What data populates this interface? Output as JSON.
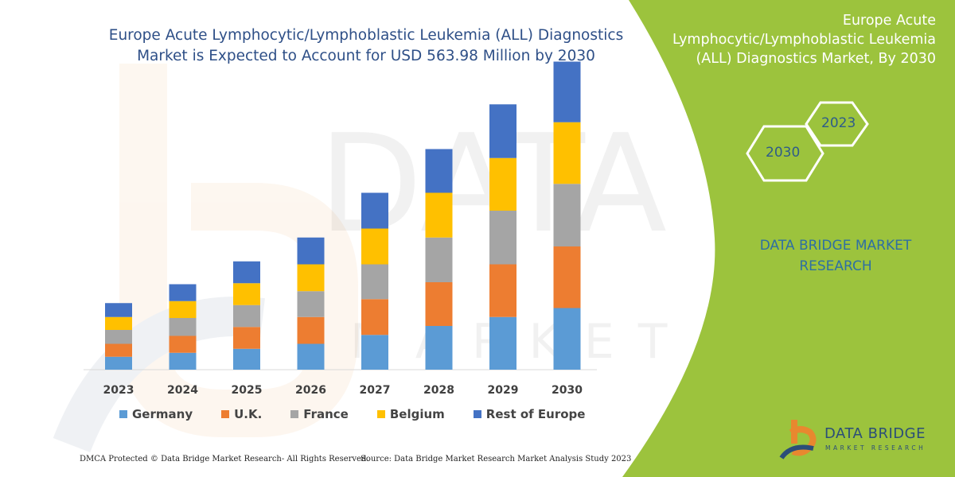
{
  "title": "Europe Acute Lymphocytic/Lymphoblastic Leukemia (ALL) Diagnostics Market is Expected to Account for USD 563.98 Million by 2030",
  "panel": {
    "title": "Europe Acute Lymphocytic/Lymphoblastic Leukemia (ALL) Diagnostics Market, By 2030",
    "hex_2023": "2023",
    "hex_2030": "2030",
    "brand_line1": "DATA BRIDGE MARKET",
    "brand_line2": "RESEARCH",
    "logo_name": "DATA BRIDGE",
    "logo_sub": "MARKET RESEARCH",
    "colors": {
      "panel_green": "#9cc33d",
      "hex_outline": "#ffffff",
      "logo_orange": "#e8882f",
      "logo_blue": "#2b4e78"
    }
  },
  "footer": {
    "left": "DMCA Protected © Data Bridge Market Research-  All Rights Reserved.",
    "right": "Source: Data Bridge Market Research  Market Analysis Study 2023"
  },
  "legend_items": [
    "Germany",
    "U.K.",
    "France",
    "Belgium",
    "Rest of Europe"
  ],
  "chart_data": {
    "type": "bar",
    "stacked": true,
    "title": "Europe Acute Lymphocytic/Lymphoblastic Leukemia (ALL) Diagnostics Market is Expected to Account for USD 563.98 Million by 2030",
    "categories": [
      "2023",
      "2024",
      "2025",
      "2026",
      "2027",
      "2028",
      "2029",
      "2030"
    ],
    "series": [
      {
        "name": "Germany",
        "color": "#5b9bd5",
        "values": [
          13,
          17,
          21,
          26,
          35,
          44,
          53,
          62
        ]
      },
      {
        "name": "U.K.",
        "color": "#ed7d31",
        "values": [
          13,
          17,
          22,
          27,
          36,
          44,
          53,
          62
        ]
      },
      {
        "name": "France",
        "color": "#a5a5a5",
        "values": [
          14,
          18,
          22,
          26,
          35,
          45,
          54,
          63
        ]
      },
      {
        "name": "Belgium",
        "color": "#ffc000",
        "values": [
          13,
          17,
          22,
          27,
          36,
          45,
          53,
          62
        ]
      },
      {
        "name": "Rest of Europe",
        "color": "#4472c4",
        "values": [
          14,
          17,
          22,
          27,
          36,
          44,
          54,
          61
        ]
      }
    ],
    "ylim": [
      0,
      320
    ],
    "grid": false,
    "legend_position": "bottom"
  }
}
